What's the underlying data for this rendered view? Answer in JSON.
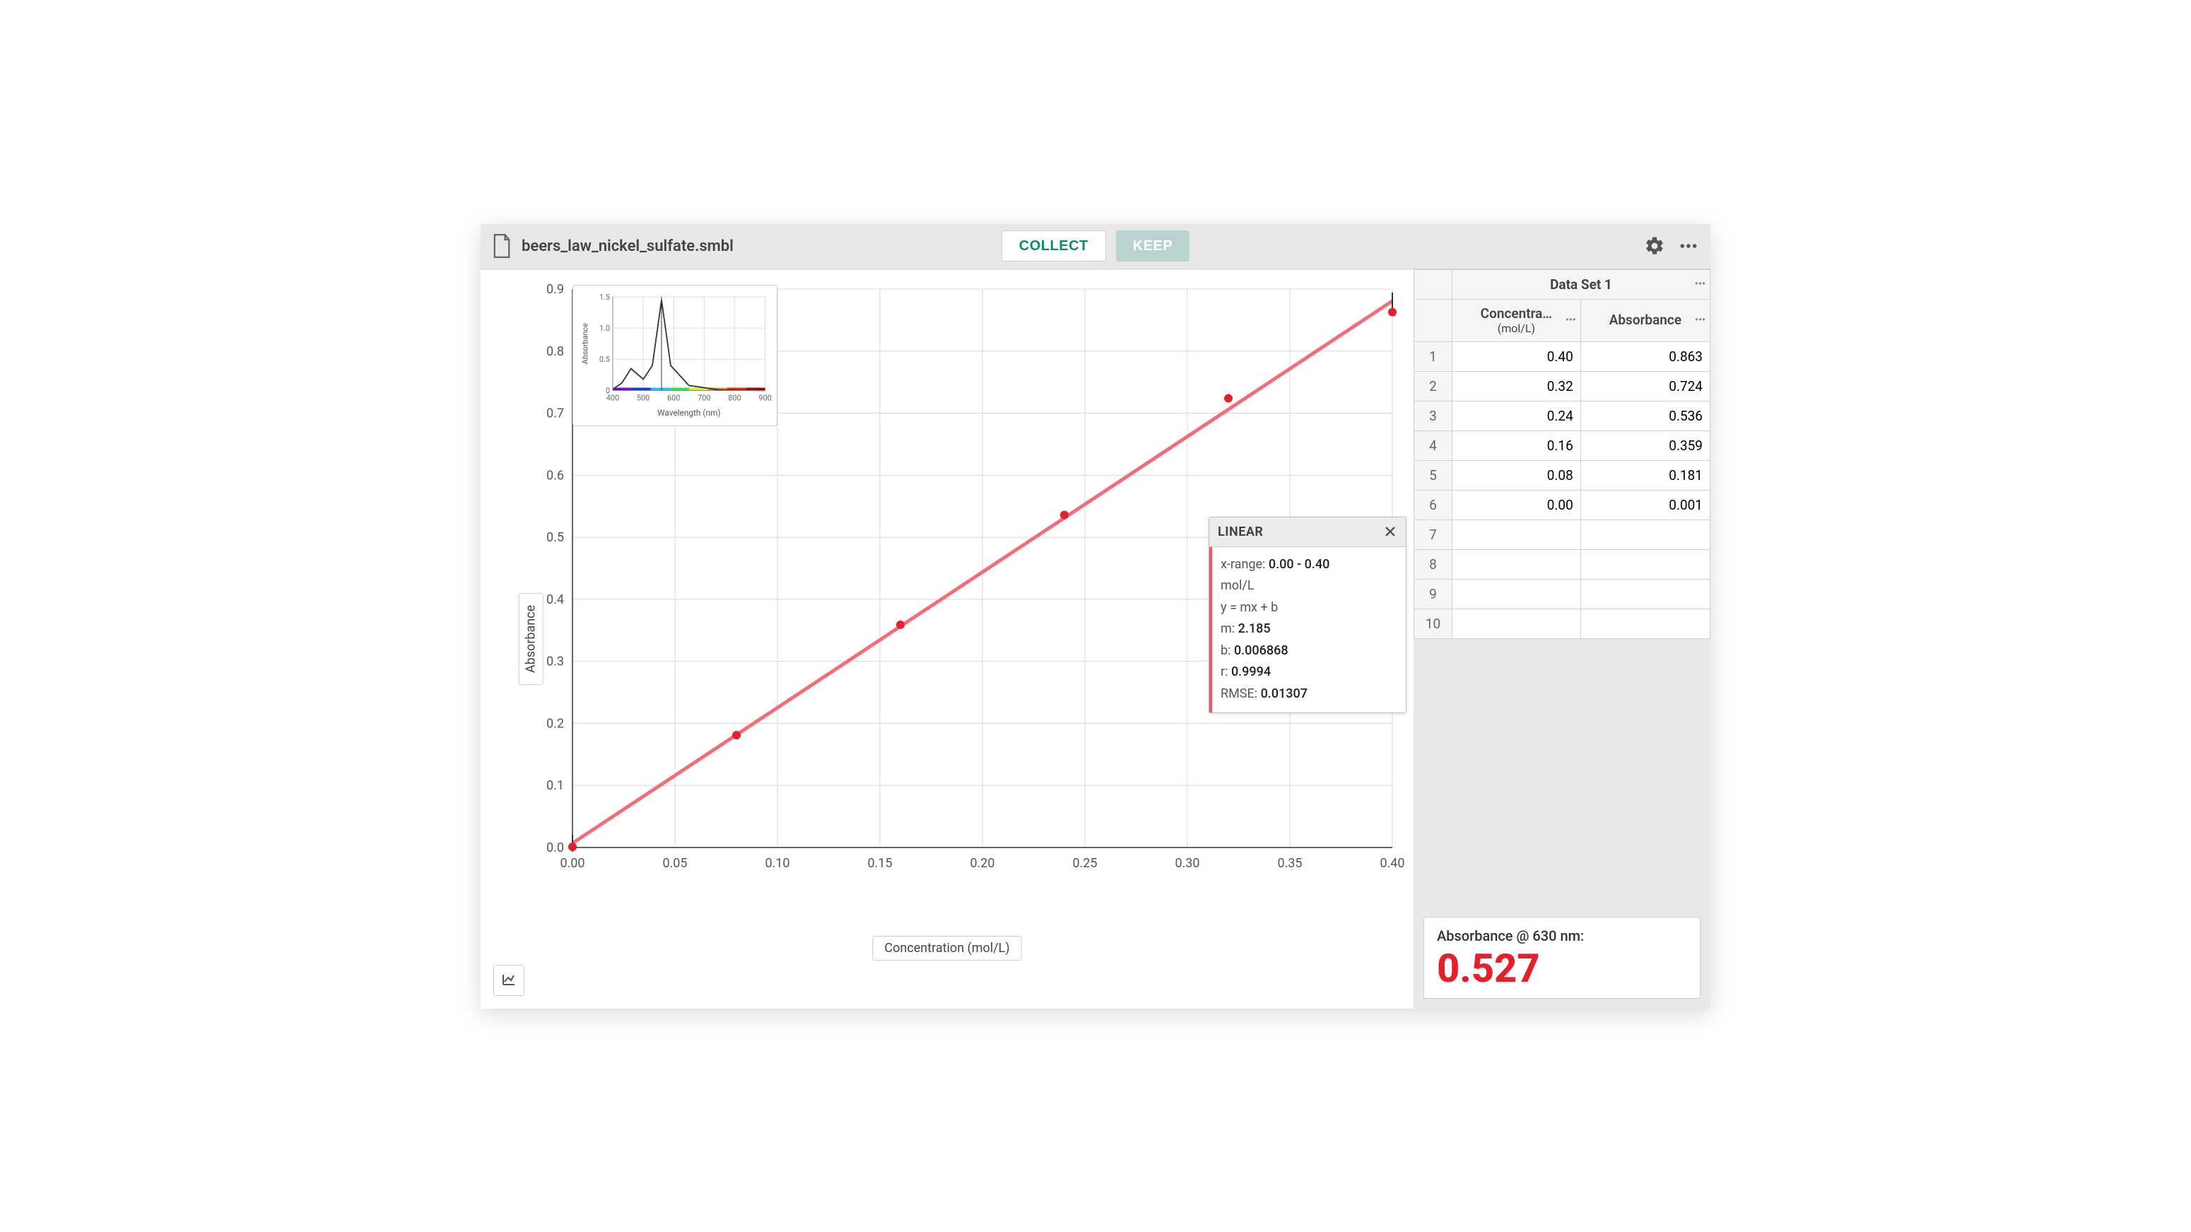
{
  "header": {
    "filename": "beers_law_nickel_sulfate.smbl",
    "collect_label": "COLLECT",
    "keep_label": "KEEP"
  },
  "graph": {
    "type": "scatter-with-linear-fit",
    "y_label": "Absorbance",
    "x_label": "Concentration (mol/L)",
    "xlim": [
      0.0,
      0.4
    ],
    "ylim": [
      0.0,
      0.9
    ],
    "xtick_step": 0.05,
    "ytick_step": 0.1,
    "xticks": [
      "0.00",
      "0.05",
      "0.10",
      "0.15",
      "0.20",
      "0.25",
      "0.30",
      "0.35",
      "0.40"
    ],
    "yticks": [
      "0.0",
      "0.1",
      "0.2",
      "0.3",
      "0.4",
      "0.5",
      "0.6",
      "0.7",
      "0.8",
      "0.9"
    ],
    "points": [
      {
        "x": 0.0,
        "y": 0.001
      },
      {
        "x": 0.08,
        "y": 0.181
      },
      {
        "x": 0.16,
        "y": 0.359
      },
      {
        "x": 0.24,
        "y": 0.536
      },
      {
        "x": 0.32,
        "y": 0.724
      },
      {
        "x": 0.4,
        "y": 0.863
      }
    ],
    "point_color": "#e3202c",
    "point_radius": 6,
    "fit_line_color": "#f26d78",
    "fit_line_width": 5,
    "fit_m": 2.185,
    "fit_b": 0.006868,
    "grid_color": "#d8d8d8",
    "axis_color": "#666666",
    "tick_font_size": 18,
    "background_color": "#ffffff"
  },
  "inset": {
    "type": "line",
    "y_label": "Absorbance",
    "x_label": "Wavelength (nm)",
    "xlim": [
      400,
      900
    ],
    "ylim": [
      0,
      1.5
    ],
    "xticks": [
      "400",
      "500",
      "600",
      "700",
      "800",
      "900"
    ],
    "yticks": [
      "0",
      "0.5",
      "1.0",
      "1.5"
    ],
    "curve_color": "#333333",
    "spectrum_colors": [
      "#7b00ff",
      "#0040ff",
      "#00d0ff",
      "#00ff40",
      "#d0ff00",
      "#ff9000",
      "#ff2000",
      "#b00000"
    ],
    "peak_nm": 560,
    "peak_abs": 1.45,
    "shoulder_nm": 460,
    "shoulder_abs": 0.35
  },
  "fit": {
    "title": "LINEAR",
    "xrange_label": "x-range:",
    "xrange_value": "0.00 - 0.40",
    "xrange_unit": "mol/L",
    "equation": "y = mx + b",
    "m_label": "m:",
    "m_value": "2.185",
    "b_label": "b:",
    "b_value": "0.006868",
    "r_label": "r:",
    "r_value": "0.9994",
    "rmse_label": "RMSE:",
    "rmse_value": "0.01307"
  },
  "table": {
    "dataset_title": "Data Set 1",
    "col1_header": "Concentra…",
    "col1_unit": "(mol/L)",
    "col2_header": "Absorbance",
    "rows": [
      {
        "n": "1",
        "c": "0.40",
        "a": "0.863"
      },
      {
        "n": "2",
        "c": "0.32",
        "a": "0.724"
      },
      {
        "n": "3",
        "c": "0.24",
        "a": "0.536"
      },
      {
        "n": "4",
        "c": "0.16",
        "a": "0.359"
      },
      {
        "n": "5",
        "c": "0.08",
        "a": "0.181"
      },
      {
        "n": "6",
        "c": "0.00",
        "a": "0.001"
      },
      {
        "n": "7",
        "c": "",
        "a": ""
      },
      {
        "n": "8",
        "c": "",
        "a": ""
      },
      {
        "n": "9",
        "c": "",
        "a": ""
      },
      {
        "n": "10",
        "c": "",
        "a": ""
      }
    ]
  },
  "meter": {
    "label": "Absorbance @ 630 nm:",
    "value": "0.527",
    "value_color": "#e3202c"
  }
}
